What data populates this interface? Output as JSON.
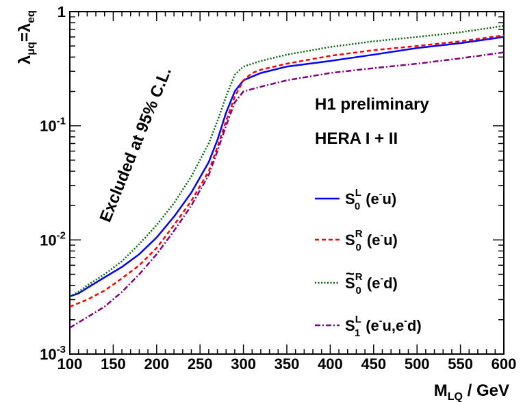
{
  "chart_data": {
    "type": "line",
    "xscale": "linear",
    "yscale": "log",
    "xlim": [
      100,
      600
    ],
    "ylim": [
      0.001,
      1
    ],
    "grid": false,
    "legend_position": "right",
    "x_axis_label": {
      "main": "M",
      "sub": "LQ",
      "rest": " / GeV"
    },
    "y_axis_label": {
      "lambda1": "λ",
      "sub1": "μq",
      "eq": "=",
      "lambda2": "λ",
      "sub2": "eq"
    },
    "x_ticks": [
      "100",
      "150",
      "200",
      "250",
      "300",
      "350",
      "400",
      "450",
      "500",
      "550",
      "600"
    ],
    "y_ticks": [
      {
        "base": "10",
        "exp": "-3"
      },
      {
        "base": "10",
        "exp": "-2"
      },
      {
        "base": "10",
        "exp": "-1"
      },
      {
        "base": "1",
        "exp": ""
      }
    ],
    "annotations": {
      "excluded": "Excluded at 95% C.L.",
      "experiment": "H1 preliminary",
      "dataset": "HERA I + II"
    },
    "series": [
      {
        "legend": {
          "S": "S",
          "sub": "0",
          "sup": "L",
          "tilde": false,
          "process": "(e",
          "process_sup": "-",
          "process_rest": "u)"
        },
        "color": "#0000ff",
        "dash": "solid",
        "x": [
          100,
          110,
          120,
          140,
          160,
          180,
          200,
          220,
          240,
          260,
          270,
          280,
          290,
          300,
          310,
          320,
          350,
          400,
          450,
          500,
          550,
          600
        ],
        "y": [
          0.0032,
          0.0034,
          0.0038,
          0.0047,
          0.0058,
          0.0075,
          0.0105,
          0.016,
          0.026,
          0.048,
          0.075,
          0.13,
          0.2,
          0.25,
          0.27,
          0.29,
          0.33,
          0.37,
          0.42,
          0.48,
          0.53,
          0.6
        ]
      },
      {
        "legend": {
          "S": "S",
          "sub": "0",
          "sup": "R",
          "tilde": false,
          "process": "(e",
          "process_sup": "-",
          "process_rest": "u)"
        },
        "color": "#ff0000",
        "dash": "dashed",
        "x": [
          100,
          120,
          140,
          160,
          180,
          200,
          220,
          240,
          260,
          270,
          280,
          290,
          300,
          310,
          320,
          350,
          400,
          450,
          500,
          550,
          600
        ],
        "y": [
          0.0026,
          0.003,
          0.0036,
          0.0046,
          0.006,
          0.0085,
          0.0135,
          0.022,
          0.04,
          0.065,
          0.11,
          0.18,
          0.25,
          0.29,
          0.31,
          0.35,
          0.41,
          0.46,
          0.5,
          0.55,
          0.62
        ]
      },
      {
        "legend": {
          "S": "S",
          "sub": "0",
          "sup": "R",
          "tilde": true,
          "process": "(e",
          "process_sup": "-",
          "process_rest": "d)"
        },
        "color": "#006400",
        "dash": "dotted",
        "x": [
          100,
          110,
          120,
          140,
          160,
          180,
          200,
          220,
          240,
          260,
          270,
          280,
          290,
          300,
          320,
          350,
          400,
          450,
          500,
          550,
          600
        ],
        "y": [
          0.0032,
          0.0035,
          0.004,
          0.005,
          0.0065,
          0.0092,
          0.0135,
          0.021,
          0.036,
          0.07,
          0.11,
          0.18,
          0.28,
          0.33,
          0.37,
          0.42,
          0.49,
          0.55,
          0.6,
          0.66,
          0.75
        ]
      },
      {
        "legend": {
          "S": "S",
          "sub": "1",
          "sup": "L",
          "tilde": false,
          "process": "(e",
          "process_sup": "-",
          "process_rest": "u,e",
          "process_sup2": "-",
          "process_rest2": "d)"
        },
        "color": "#800080",
        "dash": "dashdot",
        "x": [
          100,
          120,
          140,
          160,
          180,
          200,
          220,
          240,
          260,
          270,
          280,
          290,
          300,
          320,
          350,
          400,
          450,
          500,
          550,
          600
        ],
        "y": [
          0.0017,
          0.0021,
          0.0026,
          0.0035,
          0.005,
          0.0075,
          0.012,
          0.02,
          0.037,
          0.06,
          0.1,
          0.16,
          0.2,
          0.22,
          0.25,
          0.29,
          0.32,
          0.35,
          0.39,
          0.44
        ]
      }
    ]
  }
}
